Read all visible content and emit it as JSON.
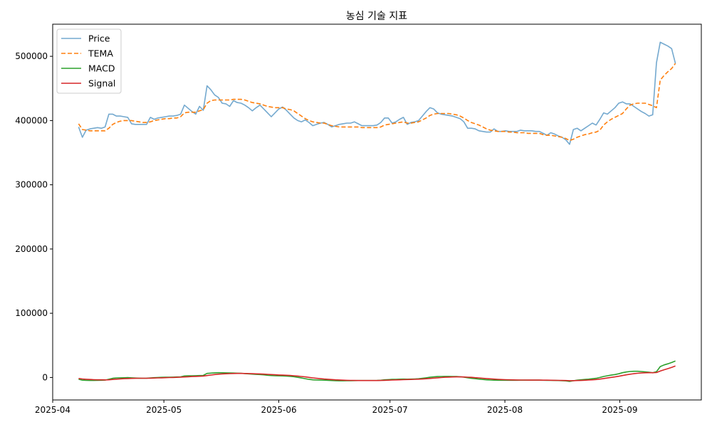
{
  "chart_data": {
    "type": "line",
    "title": "농심 기술 지표",
    "xlabel": "",
    "ylabel": "",
    "x_start": "2025-04-08",
    "x_end": "2025-09-16",
    "xlim": [
      "2025-04-01",
      "2025-09-23"
    ],
    "ylim": [
      -35000,
      550000
    ],
    "grid": false,
    "legend_position": "top-left",
    "x_ticks": [
      "2025-04",
      "2025-05",
      "2025-06",
      "2025-07",
      "2025-08",
      "2025-09"
    ],
    "y_ticks": [
      0,
      100000,
      200000,
      300000,
      400000,
      500000
    ],
    "y_tick_labels": [
      "0",
      "100000",
      "200000",
      "300000",
      "400000",
      "500000"
    ],
    "series": [
      {
        "name": "Price",
        "color": "#74a9cf",
        "dash": "solid",
        "values": [
          390000,
          374000,
          385000,
          387000,
          388000,
          389000,
          388000,
          390000,
          410000,
          410000,
          407000,
          407000,
          406000,
          405000,
          395000,
          394000,
          394000,
          394000,
          394000,
          405000,
          402000,
          404000,
          405000,
          406000,
          407000,
          407000,
          408000,
          410000,
          424000,
          419000,
          414000,
          410000,
          422000,
          416000,
          454000,
          448000,
          440000,
          436000,
          427000,
          426000,
          422000,
          431000,
          428000,
          427000,
          424000,
          420000,
          415000,
          420000,
          424000,
          418000,
          412000,
          406000,
          412000,
          418000,
          421000,
          416000,
          410000,
          404000,
          400000,
          398000,
          401000,
          397000,
          392000,
          394000,
          396000,
          397000,
          394000,
          390000,
          392000,
          394000,
          395000,
          396000,
          396000,
          398000,
          395000,
          392000,
          392000,
          392000,
          392000,
          393000,
          397000,
          404000,
          404000,
          396000,
          398000,
          402000,
          405000,
          394000,
          397000,
          398000,
          400000,
          407000,
          414000,
          420000,
          418000,
          412000,
          410000,
          409000,
          408000,
          407000,
          405000,
          403000,
          398000,
          388000,
          388000,
          387000,
          384000,
          383000,
          382000,
          382000,
          387000,
          383000,
          383000,
          384000,
          383000,
          383000,
          383000,
          385000,
          384000,
          384000,
          384000,
          383000,
          383000,
          380000,
          377000,
          381000,
          379000,
          376000,
          374000,
          370000,
          363000,
          386000,
          388000,
          384000,
          388000,
          392000,
          396000,
          393000,
          402000,
          412000,
          410000,
          415000,
          420000,
          427000,
          429000,
          426000,
          426000,
          422000,
          418000,
          414000,
          411000,
          407000,
          409000,
          490000,
          522000,
          519000,
          516000,
          512000,
          489000
        ]
      },
      {
        "name": "TEMA",
        "color": "#ff7f0e",
        "dash": "dashed",
        "values": [
          395000,
          386000,
          385000,
          384000,
          384000,
          384000,
          384000,
          384000,
          388000,
          394000,
          397000,
          399000,
          400000,
          400000,
          400000,
          399000,
          398000,
          397000,
          397000,
          398000,
          400000,
          401000,
          402000,
          403000,
          403000,
          404000,
          404000,
          406000,
          412000,
          413000,
          413000,
          413000,
          415000,
          417000,
          427000,
          431000,
          432000,
          432000,
          432000,
          432000,
          432000,
          433000,
          433000,
          433000,
          432000,
          430000,
          428000,
          427000,
          426000,
          424000,
          422000,
          421000,
          420000,
          420000,
          420000,
          418000,
          417000,
          415000,
          411000,
          407000,
          403000,
          400000,
          398000,
          397000,
          396000,
          396000,
          394000,
          392000,
          391000,
          390000,
          390000,
          390000,
          390000,
          390000,
          390000,
          389000,
          389000,
          389000,
          389000,
          389000,
          390000,
          393000,
          394000,
          395000,
          396000,
          397000,
          398000,
          396000,
          396000,
          397000,
          398000,
          401000,
          404000,
          408000,
          410000,
          411000,
          411000,
          411000,
          411000,
          410000,
          409000,
          407000,
          404000,
          400000,
          397000,
          395000,
          393000,
          390000,
          387000,
          385000,
          384000,
          383000,
          383000,
          383000,
          382000,
          382000,
          381000,
          381000,
          381000,
          380000,
          380000,
          380000,
          380000,
          378000,
          377000,
          377000,
          376000,
          375000,
          374000,
          372000,
          369000,
          371000,
          374000,
          376000,
          378000,
          379000,
          381000,
          382000,
          385000,
          393000,
          398000,
          402000,
          405000,
          408000,
          411000,
          418000,
          424000,
          426000,
          427000,
          427000,
          427000,
          425000,
          423000,
          420000,
          463000,
          470000,
          476000,
          481000,
          489000
        ]
      },
      {
        "name": "MACD",
        "color": "#2ca02c",
        "dash": "solid",
        "values": [
          -2800,
          -4200,
          -4500,
          -4600,
          -4600,
          -4500,
          -4300,
          -4100,
          -2800,
          -1300,
          -700,
          -500,
          -400,
          -200,
          -500,
          -900,
          -1100,
          -1200,
          -1100,
          -600,
          -300,
          0,
          200,
          400,
          500,
          600,
          800,
          1000,
          2300,
          2600,
          2700,
          2800,
          3000,
          3200,
          6300,
          6800,
          7200,
          7400,
          7300,
          7200,
          7000,
          6900,
          6700,
          6500,
          6100,
          5700,
          5200,
          4800,
          4500,
          4100,
          3500,
          3000,
          2700,
          2600,
          2500,
          2200,
          1800,
          1200,
          200,
          -800,
          -1900,
          -3000,
          -3700,
          -4000,
          -4100,
          -4200,
          -4400,
          -4800,
          -5100,
          -5200,
          -5200,
          -5100,
          -5000,
          -4900,
          -4800,
          -4800,
          -4800,
          -4800,
          -4700,
          -4600,
          -4300,
          -3700,
          -3300,
          -3000,
          -2900,
          -2700,
          -2500,
          -2600,
          -2500,
          -2300,
          -2000,
          -1300,
          -500,
          300,
          1000,
          1400,
          1600,
          1700,
          1700,
          1600,
          1400,
          1100,
          600,
          -400,
          -1300,
          -1900,
          -2500,
          -3100,
          -3600,
          -4000,
          -4200,
          -4300,
          -4300,
          -4300,
          -4300,
          -4300,
          -4300,
          -4200,
          -4200,
          -4200,
          -4200,
          -4200,
          -4200,
          -4300,
          -4500,
          -4500,
          -4600,
          -4800,
          -5000,
          -5300,
          -6100,
          -5100,
          -4200,
          -3600,
          -3100,
          -2600,
          -2000,
          -1300,
          0,
          1600,
          2700,
          3700,
          4600,
          5800,
          7400,
          8500,
          9300,
          9600,
          9600,
          9300,
          8800,
          8200,
          7300,
          9000,
          17000,
          19500,
          21300,
          23300,
          25700
        ]
      },
      {
        "name": "Signal",
        "color": "#d62728",
        "dash": "solid",
        "values": [
          -1500,
          -2300,
          -2800,
          -3100,
          -3400,
          -3600,
          -3700,
          -3800,
          -3600,
          -3100,
          -2600,
          -2200,
          -1900,
          -1600,
          -1400,
          -1300,
          -1200,
          -1200,
          -1200,
          -1100,
          -900,
          -700,
          -500,
          -300,
          -100,
          0,
          200,
          400,
          800,
          1100,
          1400,
          1700,
          1900,
          2200,
          3000,
          3800,
          4500,
          5100,
          5500,
          5800,
          6000,
          6200,
          6300,
          6300,
          6200,
          6100,
          5900,
          5700,
          5500,
          5200,
          4900,
          4500,
          4200,
          3900,
          3700,
          3400,
          3100,
          2700,
          2200,
          1600,
          900,
          100,
          -600,
          -1300,
          -1900,
          -2400,
          -2800,
          -3200,
          -3600,
          -3900,
          -4200,
          -4400,
          -4500,
          -4600,
          -4700,
          -4700,
          -4700,
          -4700,
          -4700,
          -4700,
          -4600,
          -4400,
          -4200,
          -4000,
          -3800,
          -3600,
          -3400,
          -3200,
          -3100,
          -2900,
          -2700,
          -2400,
          -2000,
          -1500,
          -1000,
          -500,
          -100,
          300,
          600,
          800,
          900,
          900,
          800,
          500,
          200,
          -300,
          -700,
          -1200,
          -1700,
          -2100,
          -2500,
          -2900,
          -3200,
          -3400,
          -3600,
          -3800,
          -3900,
          -4000,
          -4000,
          -4100,
          -4100,
          -4100,
          -4100,
          -4200,
          -4200,
          -4300,
          -4400,
          -4500,
          -4600,
          -4700,
          -5000,
          -5000,
          -4800,
          -4600,
          -4300,
          -4000,
          -3600,
          -3200,
          -2500,
          -1700,
          -800,
          100,
          900,
          1900,
          3000,
          4100,
          5100,
          5900,
          6500,
          7000,
          7300,
          7400,
          7400,
          7700,
          10000,
          12000,
          13800,
          15700,
          18000
        ]
      }
    ]
  }
}
